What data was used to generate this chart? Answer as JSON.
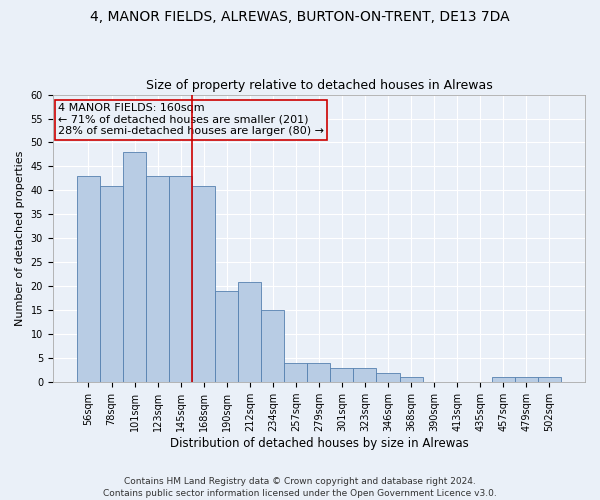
{
  "title1": "4, MANOR FIELDS, ALREWAS, BURTON-ON-TRENT, DE13 7DA",
  "title2": "Size of property relative to detached houses in Alrewas",
  "xlabel": "Distribution of detached houses by size in Alrewas",
  "ylabel": "Number of detached properties",
  "categories": [
    "56sqm",
    "78sqm",
    "101sqm",
    "123sqm",
    "145sqm",
    "168sqm",
    "190sqm",
    "212sqm",
    "234sqm",
    "257sqm",
    "279sqm",
    "301sqm",
    "323sqm",
    "346sqm",
    "368sqm",
    "390sqm",
    "413sqm",
    "435sqm",
    "457sqm",
    "479sqm",
    "502sqm"
  ],
  "values": [
    43,
    41,
    48,
    43,
    43,
    41,
    19,
    21,
    15,
    4,
    4,
    3,
    3,
    2,
    1,
    0,
    0,
    0,
    1,
    1,
    1
  ],
  "bar_color": "#b8cce4",
  "bar_edge_color": "#5580b0",
  "vline_x": 4.5,
  "vline_color": "#cc0000",
  "annotation_text": "4 MANOR FIELDS: 160sqm\n← 71% of detached houses are smaller (201)\n28% of semi-detached houses are larger (80) →",
  "ylim": [
    0,
    60
  ],
  "yticks": [
    0,
    5,
    10,
    15,
    20,
    25,
    30,
    35,
    40,
    45,
    50,
    55,
    60
  ],
  "background_color": "#eaf0f8",
  "grid_color": "#ffffff",
  "footer": "Contains HM Land Registry data © Crown copyright and database right 2024.\nContains public sector information licensed under the Open Government Licence v3.0.",
  "title1_fontsize": 10,
  "title2_fontsize": 9,
  "xlabel_fontsize": 8.5,
  "ylabel_fontsize": 8,
  "tick_fontsize": 7,
  "annotation_fontsize": 8,
  "footer_fontsize": 6.5
}
